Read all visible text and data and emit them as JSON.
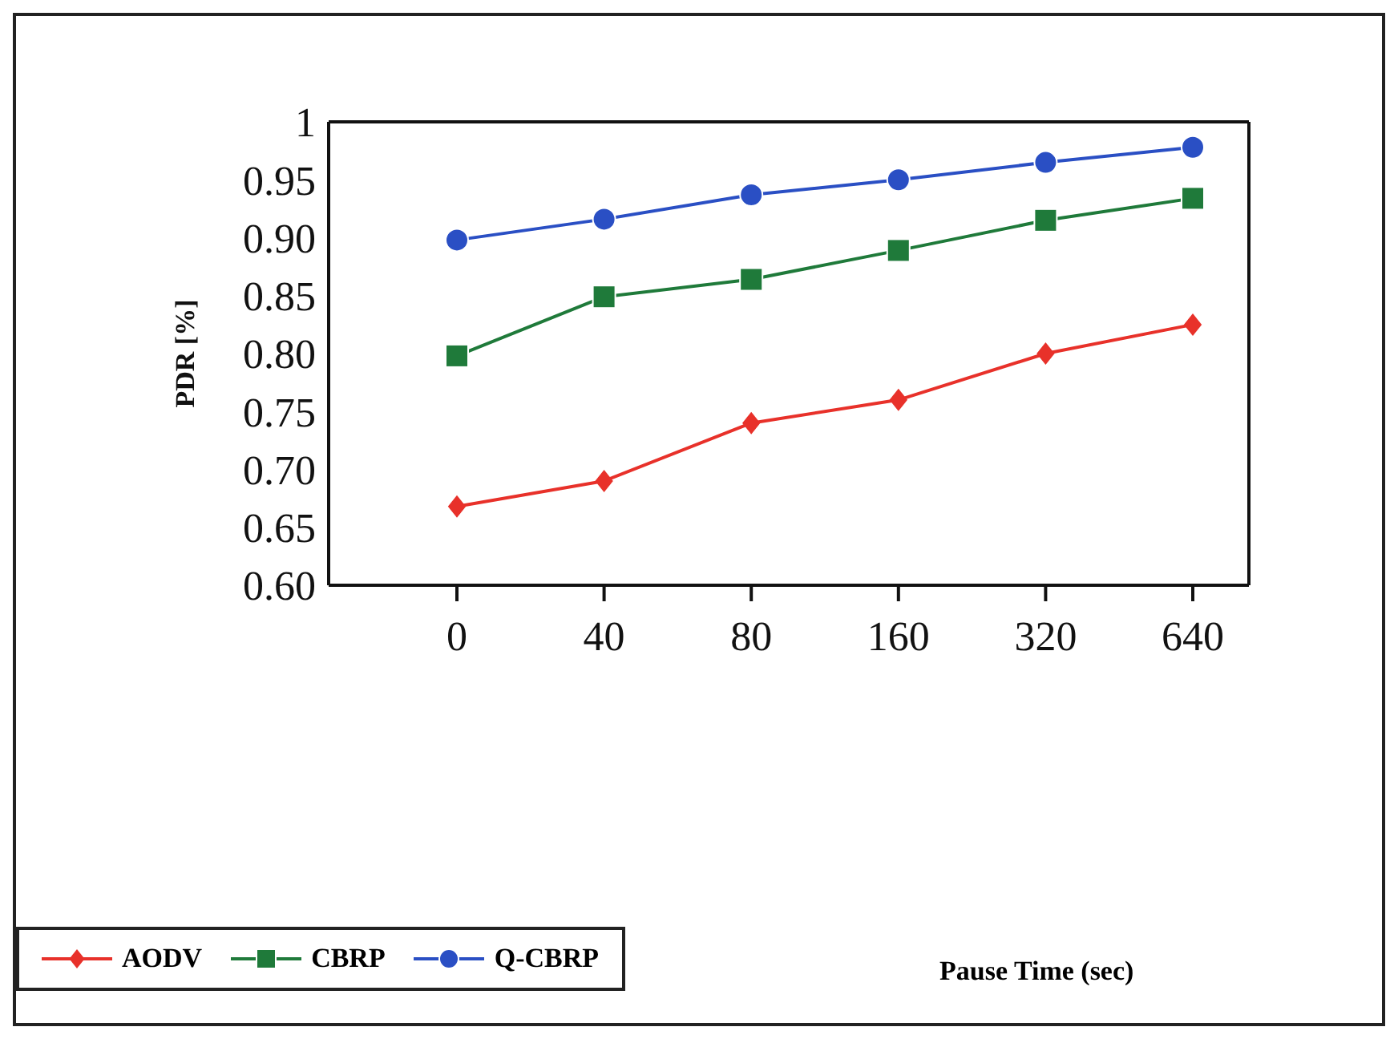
{
  "chart_data": {
    "type": "line",
    "annotations": [
      "Pause Time (sec)"
    ],
    "ylabel": "PDR [%]",
    "categories": [
      "0",
      "40",
      "80",
      "160",
      "320",
      "640"
    ],
    "series": [
      {
        "name": "AODV",
        "color": "#e8312a",
        "marker": "diamond",
        "values": [
          0.668,
          0.69,
          0.74,
          0.76,
          0.8,
          0.825
        ]
      },
      {
        "name": "CBRP",
        "color": "#1f7a3a",
        "marker": "square",
        "values": [
          0.798,
          0.849,
          0.864,
          0.889,
          0.915,
          0.934
        ]
      },
      {
        "name": "Q-CBRP",
        "color": "#2a4fc4",
        "marker": "circle",
        "values": [
          0.898,
          0.916,
          0.937,
          0.95,
          0.965,
          0.978
        ]
      }
    ],
    "ylim": [
      0.6,
      1
    ],
    "yticks": [
      {
        "value": 0.6,
        "label": "0.60"
      },
      0.65,
      {
        "value": 0.7,
        "label": "0.70"
      },
      0.75,
      {
        "value": 0.8,
        "label": "0.80"
      },
      0.85,
      {
        "value": 0.9,
        "label": "0.90"
      },
      0.95,
      1
    ],
    "grid": false,
    "legend": "bottom left"
  }
}
